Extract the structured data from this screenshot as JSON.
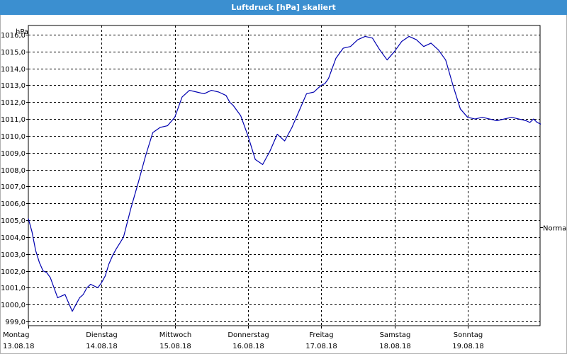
{
  "chart_data": {
    "type": "line",
    "title": "Luftdruck [hPa] skaliert",
    "ylabel": "hPa",
    "ylim": [
      999.0,
      1016.6
    ],
    "yticks": [
      999.0,
      1000.0,
      1001.0,
      1002.0,
      1003.0,
      1004.0,
      1005.0,
      1006.0,
      1007.0,
      1008.0,
      1009.0,
      1010.0,
      1011.0,
      1012.0,
      1013.0,
      1014.0,
      1015.0,
      1016.0
    ],
    "ytick_labels": [
      "999,0",
      "1000,0",
      "1001,0",
      "1002,0",
      "1003,0",
      "1004,0",
      "1005,0",
      "1006,0",
      "1007,0",
      "1008,0",
      "1009,0",
      "1010,0",
      "1011,0",
      "1012,0",
      "1013,0",
      "1014,0",
      "1015,0",
      "1016,0"
    ],
    "xlim": [
      0,
      7
    ],
    "xticks": [
      {
        "day": "Montag",
        "date": "13.08.18"
      },
      {
        "day": "Dienstag",
        "date": "14.08.18"
      },
      {
        "day": "Mittwoch",
        "date": "15.08.18"
      },
      {
        "day": "Donnerstag",
        "date": "16.08.18"
      },
      {
        "day": "Freitag",
        "date": "17.08.18"
      },
      {
        "day": "Samstag",
        "date": "18.08.18"
      },
      {
        "day": "Sonntag",
        "date": "19.08.18"
      }
    ],
    "reference_line": {
      "label": "Normal",
      "value": 1004.6
    },
    "grid": true,
    "color": "#0000b0",
    "series": [
      {
        "x": [
          0.0,
          0.05,
          0.1,
          0.15,
          0.2,
          0.25,
          0.3,
          0.4,
          0.5,
          0.55,
          0.6,
          0.65,
          0.7,
          0.75,
          0.8,
          0.85,
          0.9,
          0.95,
          1.0,
          1.05,
          1.1,
          1.15,
          1.2,
          1.3,
          1.4,
          1.5,
          1.6,
          1.7,
          1.8,
          1.9,
          2.0,
          2.1,
          2.2,
          2.3,
          2.4,
          2.5,
          2.6,
          2.7,
          2.75,
          2.8,
          2.9,
          3.0,
          3.1,
          3.2,
          3.3,
          3.4,
          3.5,
          3.6,
          3.7,
          3.8,
          3.9,
          3.95,
          4.0,
          4.05,
          4.1,
          4.2,
          4.3,
          4.4,
          4.5,
          4.6,
          4.7,
          4.8,
          4.9,
          5.0,
          5.1,
          5.2,
          5.3,
          5.4,
          5.5,
          5.6,
          5.7,
          5.8,
          5.9,
          6.0,
          6.1,
          6.2,
          6.3,
          6.4,
          6.5,
          6.6,
          6.7,
          6.8,
          6.85,
          6.9,
          6.95,
          7.0
        ],
        "y": [
          1005.1,
          1004.3,
          1003.2,
          1002.5,
          1002.0,
          1001.9,
          1001.6,
          1000.4,
          1000.6,
          1000.1,
          999.6,
          1000.0,
          1000.4,
          1000.6,
          1001.0,
          1001.2,
          1001.1,
          1001.0,
          1001.3,
          1001.7,
          1002.4,
          1002.9,
          1003.3,
          1004.0,
          1005.7,
          1007.2,
          1008.8,
          1010.2,
          1010.5,
          1010.6,
          1011.1,
          1012.3,
          1012.7,
          1012.6,
          1012.5,
          1012.7,
          1012.6,
          1012.4,
          1012.0,
          1011.8,
          1011.2,
          1010.0,
          1008.6,
          1008.3,
          1009.1,
          1010.1,
          1009.7,
          1010.5,
          1011.5,
          1012.5,
          1012.6,
          1012.8,
          1013.0,
          1013.1,
          1013.4,
          1014.6,
          1015.2,
          1015.3,
          1015.7,
          1015.9,
          1015.8,
          1015.1,
          1014.5,
          1015.0,
          1015.6,
          1015.9,
          1015.7,
          1015.3,
          1015.5,
          1015.1,
          1014.5,
          1013.0,
          1011.6,
          1011.1,
          1011.0,
          1011.1,
          1011.0,
          1010.9,
          1011.0,
          1011.1,
          1011.0,
          1010.9,
          1010.8,
          1011.0,
          1010.8,
          1010.7
        ]
      }
    ]
  }
}
